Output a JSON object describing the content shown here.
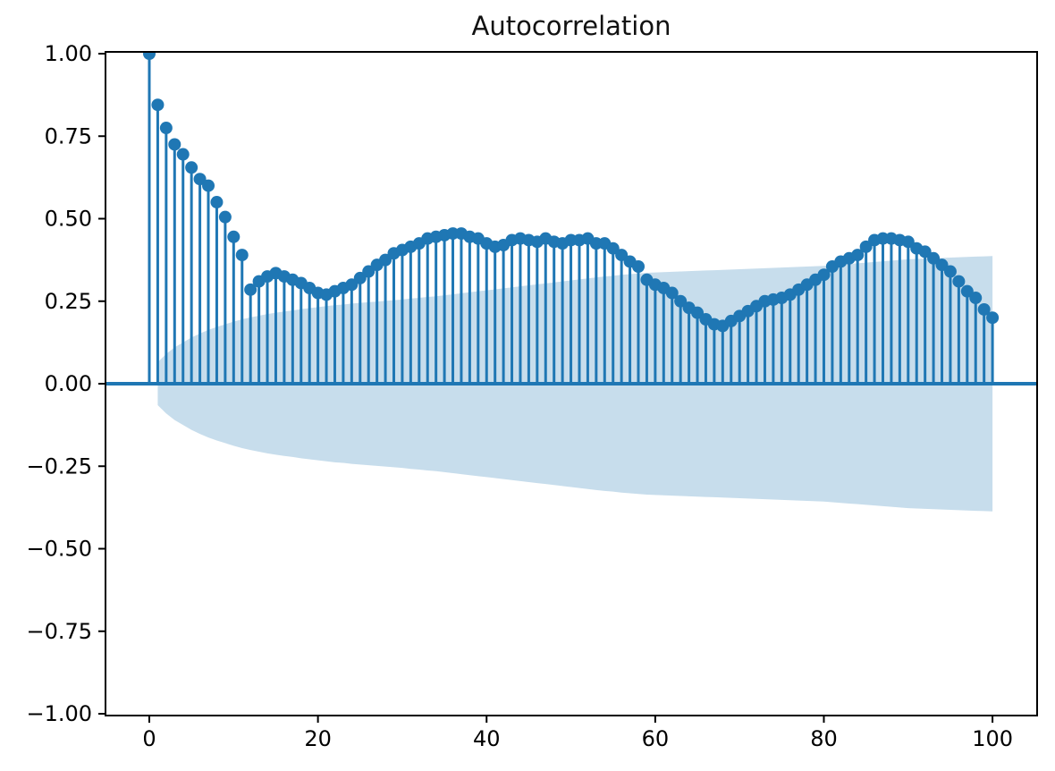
{
  "chart_data": {
    "type": "stem",
    "title": "Autocorrelation",
    "xlabel": "",
    "ylabel": "",
    "xlim": [
      -5.25,
      105.25
    ],
    "ylim": [
      -1.0,
      1.0
    ],
    "grid": false,
    "legend": null,
    "x_tick_labels": [
      "0",
      "20",
      "40",
      "60",
      "80",
      "100"
    ],
    "x_tick_values": [
      0,
      20,
      40,
      60,
      80,
      100
    ],
    "y_tick_labels": [
      "1.00",
      "0.75",
      "0.50",
      "0.25",
      "0.00",
      "−0.25",
      "−0.50",
      "−0.75",
      "−1.00"
    ],
    "y_tick_values": [
      1.0,
      0.75,
      0.5,
      0.25,
      0.0,
      -0.25,
      -0.5,
      -0.75,
      -1.0
    ],
    "series": [
      {
        "name": "acf",
        "x_start": 0,
        "values": [
          1.0,
          0.845,
          0.775,
          0.725,
          0.695,
          0.655,
          0.62,
          0.6,
          0.55,
          0.505,
          0.445,
          0.39,
          0.285,
          0.31,
          0.325,
          0.335,
          0.325,
          0.315,
          0.305,
          0.29,
          0.275,
          0.27,
          0.28,
          0.29,
          0.3,
          0.32,
          0.34,
          0.36,
          0.375,
          0.395,
          0.405,
          0.415,
          0.425,
          0.44,
          0.445,
          0.45,
          0.455,
          0.455,
          0.445,
          0.44,
          0.425,
          0.415,
          0.42,
          0.435,
          0.44,
          0.435,
          0.43,
          0.44,
          0.43,
          0.425,
          0.435,
          0.435,
          0.44,
          0.425,
          0.425,
          0.41,
          0.39,
          0.37,
          0.355,
          0.315,
          0.3,
          0.29,
          0.275,
          0.25,
          0.23,
          0.215,
          0.195,
          0.18,
          0.175,
          0.19,
          0.205,
          0.22,
          0.235,
          0.25,
          0.255,
          0.26,
          0.27,
          0.285,
          0.3,
          0.315,
          0.33,
          0.355,
          0.37,
          0.38,
          0.39,
          0.415,
          0.435,
          0.44,
          0.44,
          0.435,
          0.43,
          0.41,
          0.4,
          0.38,
          0.36,
          0.34,
          0.31,
          0.28,
          0.26,
          0.225,
          0.2
        ]
      },
      {
        "name": "confidence_band_halfwidth",
        "x_start": 1,
        "values": [
          0.065,
          0.09,
          0.11,
          0.125,
          0.14,
          0.152,
          0.163,
          0.172,
          0.18,
          0.188,
          0.195,
          0.201,
          0.206,
          0.211,
          0.215,
          0.219,
          0.222,
          0.226,
          0.229,
          0.232,
          0.235,
          0.238,
          0.24,
          0.243,
          0.245,
          0.247,
          0.249,
          0.251,
          0.253,
          0.255,
          0.258,
          0.26,
          0.263,
          0.265,
          0.268,
          0.271,
          0.274,
          0.277,
          0.28,
          0.283,
          0.286,
          0.289,
          0.292,
          0.295,
          0.298,
          0.301,
          0.304,
          0.307,
          0.31,
          0.313,
          0.316,
          0.319,
          0.322,
          0.325,
          0.327,
          0.33,
          0.332,
          0.334,
          0.336,
          0.337,
          0.338,
          0.339,
          0.34,
          0.341,
          0.342,
          0.343,
          0.344,
          0.345,
          0.346,
          0.347,
          0.348,
          0.349,
          0.35,
          0.351,
          0.352,
          0.353,
          0.354,
          0.355,
          0.356,
          0.357,
          0.359,
          0.361,
          0.363,
          0.365,
          0.367,
          0.369,
          0.371,
          0.373,
          0.375,
          0.377,
          0.378,
          0.379,
          0.38,
          0.381,
          0.382,
          0.383,
          0.384,
          0.385,
          0.386,
          0.387
        ]
      }
    ],
    "colors": {
      "stem": "#1f77b4",
      "marker": "#1f77b4",
      "band_fill": "#1f77b4",
      "band_opacity": 0.25,
      "zero_line": "#1f77b4",
      "spine": "#000000",
      "tick_label": "#000000"
    }
  }
}
